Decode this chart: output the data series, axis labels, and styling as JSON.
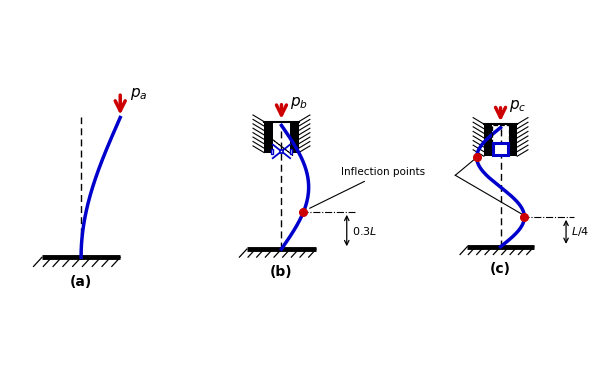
{
  "bg_color": "#ffffff",
  "blue": "#0000cc",
  "red": "#cc0000",
  "black": "#000000",
  "title_a": "$p_a$",
  "title_b": "$p_b$",
  "title_c": "$p_c$",
  "label_a": "(a)",
  "label_b": "(b)",
  "label_c": "(c)",
  "inflection_text": "Inflection points",
  "dim_b": "0.3$L$",
  "dim_c": "$L$/4"
}
